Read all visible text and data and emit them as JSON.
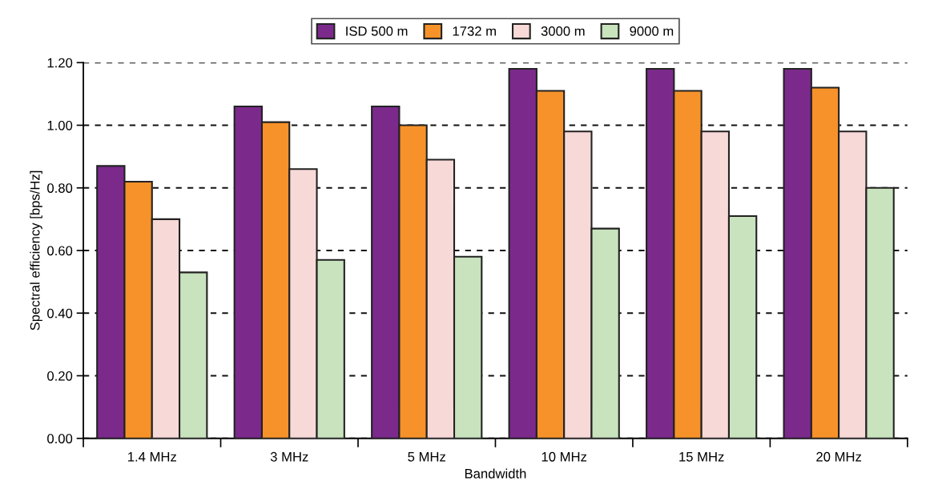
{
  "chart_data": {
    "type": "bar",
    "xlabel": "Bandwidth",
    "ylabel": "Spectral efficiency [bps/Hz]",
    "categories": [
      "1.4 MHz",
      "3 MHz",
      "5 MHz",
      "10 MHz",
      "15 MHz",
      "20 MHz"
    ],
    "series": [
      {
        "name": "ISD 500 m",
        "color": "#7b2a8c",
        "values": [
          0.87,
          1.06,
          1.06,
          1.18,
          1.18,
          1.18
        ]
      },
      {
        "name": "1732 m",
        "color": "#f7922a",
        "values": [
          0.82,
          1.01,
          1.0,
          1.11,
          1.11,
          1.12
        ]
      },
      {
        "name": "3000 m",
        "color": "#f7d9d7",
        "values": [
          0.7,
          0.86,
          0.89,
          0.98,
          0.98,
          0.98
        ]
      },
      {
        "name": "9000 m",
        "color": "#c8e3bd",
        "values": [
          0.53,
          0.57,
          0.58,
          0.67,
          0.71,
          0.8
        ]
      }
    ],
    "ylim": [
      0,
      1.2
    ],
    "yticks": [
      {
        "value": 0,
        "label": "0.00"
      },
      {
        "value": 0.2,
        "label": "0.20"
      },
      {
        "value": 0.4,
        "label": "0.40"
      },
      {
        "value": 0.6,
        "label": "0.60"
      },
      {
        "value": 0.8,
        "label": "0.80"
      },
      {
        "value": 1.0,
        "label": "1.00"
      },
      {
        "value": 1.2,
        "label": "1.20"
      }
    ],
    "grid": "y",
    "legend": "top"
  }
}
